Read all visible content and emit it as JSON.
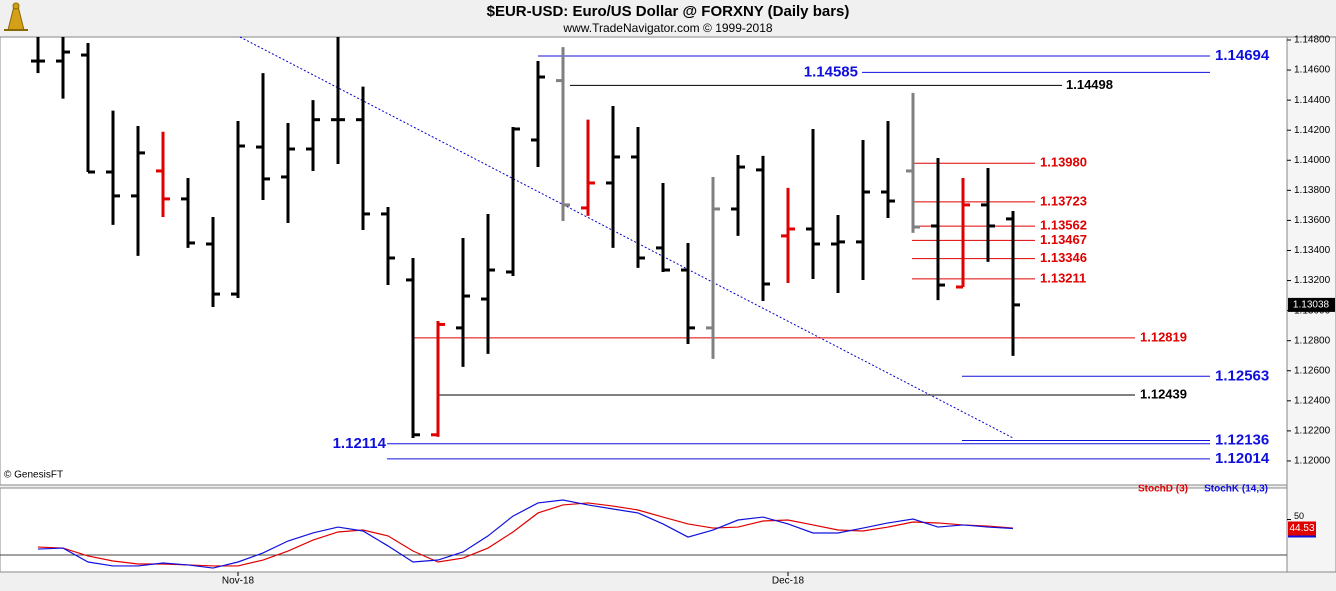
{
  "chart_data": {
    "type": "ohlc",
    "title": "$EUR-USD:  Euro/US Dollar @ FORXNY  (Daily bars)",
    "subtitle": "www.TradeNavigator.com © 1999-2018",
    "credit": "© GenesisFT",
    "categories": [
      null,
      null,
      null,
      null,
      null,
      null,
      null,
      null,
      "Nov-18",
      null,
      null,
      null,
      null,
      null,
      null,
      null,
      null,
      null,
      null,
      null,
      null,
      null,
      null,
      null,
      null,
      null,
      null,
      null,
      null,
      null,
      "Dec-18",
      null,
      null,
      null,
      null,
      null,
      null,
      null,
      null,
      null
    ],
    "open": [
      1.1466,
      1.1466,
      1.147,
      1.13922,
      1.13763,
      1.13929,
      1.13743,
      1.13443,
      1.1311,
      1.14088,
      1.13889,
      1.14075,
      1.1427,
      1.1427,
      1.13643,
      1.13204,
      1.12174,
      1.12885,
      1.13077,
      1.13257,
      1.14135,
      1.1453,
      1.13683,
      1.13849,
      1.14022,
      1.13417,
      1.1327,
      1.12885,
      1.13676,
      1.13936,
      1.13497,
      1.13543,
      1.13443,
      1.13457,
      1.13789,
      1.13929,
      1.13563,
      1.13157,
      1.13703,
      1.1361
    ],
    "high": [
      1.1482,
      1.1482,
      1.1478,
      1.1433,
      1.14228,
      1.1419,
      1.13882,
      1.13623,
      1.14261,
      1.1458,
      1.14248,
      1.144,
      1.1482,
      1.1449,
      1.13689,
      1.1335,
      1.12931,
      1.13483,
      1.13643,
      1.14221,
      1.1466,
      1.14753,
      1.1427,
      1.14361,
      1.14221,
      1.13849,
      1.1345,
      1.13889,
      1.14035,
      1.14029,
      1.13816,
      1.14208,
      1.13636,
      1.14135,
      1.14261,
      1.14448,
      1.14015,
      1.13882,
      1.13949,
      1.13663
    ],
    "low": [
      1.1458,
      1.1441,
      1.13922,
      1.1357,
      1.13364,
      1.13623,
      1.13417,
      1.13024,
      1.13084,
      1.13736,
      1.13583,
      1.13929,
      1.13975,
      1.13536,
      1.1317,
      1.12153,
      1.1216,
      1.12626,
      1.12712,
      1.1323,
      1.13955,
      1.13596,
      1.1363,
      1.13417,
      1.13284,
      1.13257,
      1.12778,
      1.12679,
      1.13497,
      1.13064,
      1.13184,
      1.1321,
      1.13117,
      1.13204,
      1.13616,
      1.13517,
      1.1307,
      1.13157,
      1.13324,
      1.12699
    ],
    "close": [
      1.1466,
      1.1472,
      1.13922,
      1.13763,
      1.14049,
      1.13743,
      1.1345,
      1.1311,
      1.14095,
      1.13876,
      1.14075,
      1.1427,
      1.1427,
      1.13643,
      1.1335,
      1.12174,
      1.12908,
      1.13097,
      1.1327,
      1.14208,
      1.14554,
      1.13703,
      1.13849,
      1.14022,
      1.1335,
      1.1327,
      1.12885,
      1.13676,
      1.13955,
      1.13177,
      1.13543,
      1.13443,
      1.13457,
      1.13789,
      1.13729,
      1.13556,
      1.1317,
      1.13703,
      1.13563,
      1.13038
    ],
    "colors": [
      "#000000",
      "#000000",
      "#000000",
      "#000000",
      "#000000",
      "#e00000",
      "#000000",
      "#000000",
      "#000000",
      "#000000",
      "#000000",
      "#000000",
      "#000000",
      "#000000",
      "#000000",
      "#000000",
      "#e00000",
      "#000000",
      "#000000",
      "#000000",
      "#000000",
      "#808080",
      "#e00000",
      "#000000",
      "#000000",
      "#000000",
      "#000000",
      "#808080",
      "#000000",
      "#000000",
      "#e00000",
      "#000000",
      "#000000",
      "#000000",
      "#000000",
      "#808080",
      "#000000",
      "#e00000",
      "#000000",
      "#000000"
    ],
    "ylim": [
      1.1184,
      1.1482
    ],
    "yticks": [
      {
        "value": 1.12,
        "label": "1.12000"
      },
      {
        "value": 1.122,
        "label": "1.12200"
      },
      {
        "value": 1.124,
        "label": "1.12400"
      },
      {
        "value": 1.126,
        "label": "1.12600"
      },
      {
        "value": 1.128,
        "label": "1.12800"
      },
      {
        "value": 1.13,
        "label": "1.13000"
      },
      {
        "value": 1.132,
        "label": "1.13200"
      },
      {
        "value": 1.134,
        "label": "1.13400"
      },
      {
        "value": 1.136,
        "label": "1.13600"
      },
      {
        "value": 1.138,
        "label": "1.13800"
      },
      {
        "value": 1.14,
        "label": "1.14000"
      },
      {
        "value": 1.142,
        "label": "1.14200"
      },
      {
        "value": 1.144,
        "label": "1.14400"
      },
      {
        "value": 1.146,
        "label": "1.14600"
      },
      {
        "value": 1.148,
        "label": "1.14800"
      }
    ],
    "levels": [
      {
        "value": 1.14694,
        "label": "1.14694",
        "color": "#1010dd"
      },
      {
        "value": 1.14585,
        "label": "1.14585",
        "color": "#1010dd"
      },
      {
        "value": 1.14498,
        "label": "1.14498",
        "color": "#000000"
      },
      {
        "value": 1.1398,
        "label": "1.13980",
        "color": "#e00000"
      },
      {
        "value": 1.13723,
        "label": "1.13723",
        "color": "#e00000"
      },
      {
        "value": 1.13562,
        "label": "1.13562",
        "color": "#e00000"
      },
      {
        "value": 1.13467,
        "label": "1.13467",
        "color": "#e00000"
      },
      {
        "value": 1.13346,
        "label": "1.13346",
        "color": "#e00000"
      },
      {
        "value": 1.13211,
        "label": "1.13211",
        "color": "#e00000"
      },
      {
        "value": 1.12819,
        "label": "1.12819",
        "color": "#e00000"
      },
      {
        "value": 1.12563,
        "label": "1.12563",
        "color": "#1010dd"
      },
      {
        "value": 1.12439,
        "label": "1.12439",
        "color": "#000000"
      },
      {
        "value": 1.12136,
        "label": "1.12136",
        "color": "#1010dd"
      },
      {
        "value": 1.12114,
        "label": "1.12114",
        "color": "#1010dd"
      },
      {
        "value": 1.12014,
        "label": "1.12014",
        "color": "#1010dd"
      }
    ],
    "trendline": {
      "values": [
        1.1482,
        1.12153
      ],
      "color": "#0000cc"
    },
    "stochastic": {
      "ylim": [
        18,
        68
      ],
      "yticks": [
        50
      ],
      "series": [
        {
          "name": "StochD (3)",
          "color": "#e00000",
          "values": [
            33.2,
            32.6,
            27.8,
            24.7,
            22.9,
            22.9,
            22.3,
            21.7,
            21.7,
            25.3,
            30.8,
            37.5,
            42.4,
            43.6,
            40.0,
            30.8,
            24.1,
            26.5,
            32.6,
            42.4,
            54.0,
            58.9,
            60.1,
            58.2,
            55.8,
            51.5,
            47.3,
            44.8,
            45.4,
            49.1,
            49.7,
            46.7,
            43.6,
            43.0,
            45.4,
            48.5,
            47.9,
            46.7,
            46.0,
            44.8
          ]
        },
        {
          "name": "StochK (14,3)",
          "color": "#1010dd",
          "values": [
            32.0,
            32.6,
            24.1,
            21.7,
            21.7,
            23.5,
            22.3,
            20.4,
            24.1,
            29.6,
            36.9,
            41.8,
            45.4,
            43.0,
            33.9,
            24.1,
            25.3,
            30.2,
            40.0,
            52.1,
            60.1,
            61.9,
            58.9,
            56.4,
            54.0,
            47.3,
            39.3,
            43.6,
            49.7,
            51.5,
            47.3,
            41.8,
            41.8,
            44.8,
            47.9,
            50.3,
            45.4,
            46.7,
            45.4,
            44.53
          ]
        }
      ]
    }
  }
}
